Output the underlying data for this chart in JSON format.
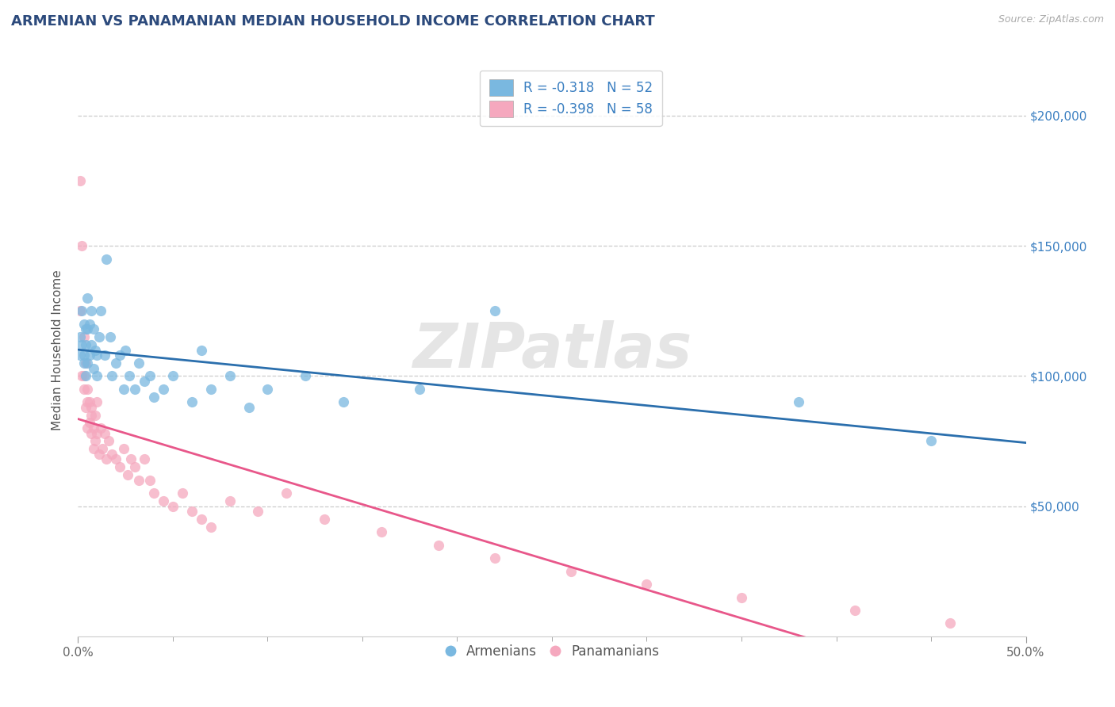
{
  "title": "ARMENIAN VS PANAMANIAN MEDIAN HOUSEHOLD INCOME CORRELATION CHART",
  "source_text": "Source: ZipAtlas.com",
  "ylabel": "Median Household Income",
  "xlim": [
    0.0,
    0.5
  ],
  "ylim": [
    0,
    220000
  ],
  "yticks": [
    0,
    50000,
    100000,
    150000,
    200000
  ],
  "ytick_right_labels": [
    "",
    "$50,000",
    "$100,000",
    "$150,000",
    "$200,000"
  ],
  "armenian_R": -0.318,
  "armenian_N": 52,
  "panamanian_R": -0.398,
  "panamanian_N": 58,
  "blue_color": "#7ab8e0",
  "pink_color": "#f5a8be",
  "blue_line_color": "#2b6fad",
  "pink_line_color": "#e8578a",
  "watermark": "ZIPatlas",
  "armenian_x": [
    0.001,
    0.001,
    0.002,
    0.002,
    0.003,
    0.003,
    0.003,
    0.004,
    0.004,
    0.004,
    0.005,
    0.005,
    0.005,
    0.006,
    0.006,
    0.007,
    0.007,
    0.008,
    0.008,
    0.009,
    0.01,
    0.01,
    0.011,
    0.012,
    0.014,
    0.015,
    0.017,
    0.018,
    0.02,
    0.022,
    0.024,
    0.025,
    0.027,
    0.03,
    0.032,
    0.035,
    0.038,
    0.04,
    0.045,
    0.05,
    0.06,
    0.065,
    0.07,
    0.08,
    0.09,
    0.1,
    0.12,
    0.14,
    0.18,
    0.22,
    0.38,
    0.45
  ],
  "armenian_y": [
    115000,
    108000,
    125000,
    112000,
    120000,
    108000,
    105000,
    118000,
    112000,
    100000,
    130000,
    118000,
    105000,
    120000,
    108000,
    125000,
    112000,
    118000,
    103000,
    110000,
    108000,
    100000,
    115000,
    125000,
    108000,
    145000,
    115000,
    100000,
    105000,
    108000,
    95000,
    110000,
    100000,
    95000,
    105000,
    98000,
    100000,
    92000,
    95000,
    100000,
    90000,
    110000,
    95000,
    100000,
    88000,
    95000,
    100000,
    90000,
    95000,
    125000,
    90000,
    75000
  ],
  "panamanian_x": [
    0.001,
    0.001,
    0.002,
    0.002,
    0.003,
    0.003,
    0.003,
    0.004,
    0.004,
    0.005,
    0.005,
    0.005,
    0.006,
    0.006,
    0.007,
    0.007,
    0.007,
    0.008,
    0.008,
    0.009,
    0.009,
    0.01,
    0.01,
    0.011,
    0.012,
    0.013,
    0.014,
    0.015,
    0.016,
    0.018,
    0.02,
    0.022,
    0.024,
    0.026,
    0.028,
    0.03,
    0.032,
    0.035,
    0.038,
    0.04,
    0.045,
    0.05,
    0.055,
    0.06,
    0.065,
    0.07,
    0.08,
    0.095,
    0.11,
    0.13,
    0.16,
    0.19,
    0.22,
    0.26,
    0.3,
    0.35,
    0.41,
    0.46
  ],
  "panamanian_y": [
    175000,
    125000,
    150000,
    100000,
    115000,
    95000,
    100000,
    105000,
    88000,
    95000,
    80000,
    90000,
    82000,
    90000,
    85000,
    78000,
    88000,
    80000,
    72000,
    85000,
    75000,
    78000,
    90000,
    70000,
    80000,
    72000,
    78000,
    68000,
    75000,
    70000,
    68000,
    65000,
    72000,
    62000,
    68000,
    65000,
    60000,
    68000,
    60000,
    55000,
    52000,
    50000,
    55000,
    48000,
    45000,
    42000,
    52000,
    48000,
    55000,
    45000,
    40000,
    35000,
    30000,
    25000,
    20000,
    15000,
    10000,
    5000
  ]
}
